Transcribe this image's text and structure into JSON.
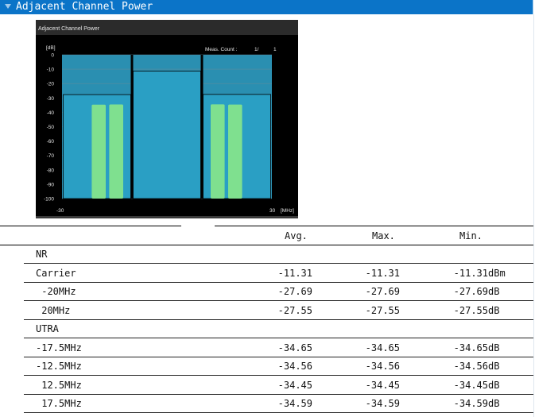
{
  "panel": {
    "title": "Adjacent Channel Power"
  },
  "chart": {
    "title": "Adjacent Channel Power",
    "y_unit": "[dB]",
    "x_unit": "[MHz]",
    "meas_count_label": "Meas. Count :",
    "meas_count_value": "1/",
    "meas_count_total": "1",
    "x_min_label": "-30",
    "x_max_label": "30",
    "y_ticks": [
      "0",
      "-10",
      "-20",
      "-30",
      "-40",
      "-50",
      "-60",
      "-70",
      "-80",
      "-90",
      "-100"
    ],
    "colors": {
      "background": "#000000",
      "plot": "#2a8fb1",
      "utra_bar": "#7fe08f",
      "grid": "#5a8c9e"
    }
  },
  "chart_data": {
    "type": "bar",
    "title": "Adjacent Channel Power",
    "ylabel": "[dB]",
    "xlabel": "[MHz]",
    "xlim": [
      -30,
      30
    ],
    "ylim": [
      -100,
      0
    ],
    "grid": true,
    "series": [
      {
        "name": "NR",
        "bars": [
          {
            "from": -30,
            "to": -10,
            "value": -27.69
          },
          {
            "from": -10,
            "to": 10,
            "value": -11.31
          },
          {
            "from": 10,
            "to": 30,
            "value": -27.55
          }
        ]
      },
      {
        "name": "UTRA",
        "bars": [
          {
            "from": -21.5,
            "to": -17.5,
            "value": -34.65
          },
          {
            "from": -16.5,
            "to": -12.5,
            "value": -34.56
          },
          {
            "from": 12.5,
            "to": 16.5,
            "value": -34.45
          },
          {
            "from": 17.5,
            "to": 21.5,
            "value": -34.59
          }
        ]
      }
    ]
  },
  "table": {
    "headers": {
      "avg": "Avg.",
      "max": "Max.",
      "min": "Min."
    },
    "rows": [
      {
        "label": "NR",
        "avg": "",
        "max": "",
        "min": "",
        "unit": ""
      },
      {
        "label": "Carrier",
        "avg": "-11.31",
        "max": "-11.31",
        "min": "-11.31",
        "unit": "dBm"
      },
      {
        "label": " -20MHz",
        "avg": "-27.69",
        "max": "-27.69",
        "min": "-27.69",
        "unit": "dB"
      },
      {
        "label": " 20MHz",
        "avg": "-27.55",
        "max": "-27.55",
        "min": "-27.55",
        "unit": "dB"
      },
      {
        "label": "UTRA",
        "avg": "",
        "max": "",
        "min": "",
        "unit": ""
      },
      {
        "label": "-17.5MHz",
        "avg": "-34.65",
        "max": "-34.65",
        "min": "-34.65",
        "unit": "dB"
      },
      {
        "label": "-12.5MHz",
        "avg": "-34.56",
        "max": "-34.56",
        "min": "-34.56",
        "unit": "dB"
      },
      {
        "label": " 12.5MHz",
        "avg": "-34.45",
        "max": "-34.45",
        "min": "-34.45",
        "unit": "dB"
      },
      {
        "label": " 17.5MHz",
        "avg": "-34.59",
        "max": "-34.59",
        "min": "-34.59",
        "unit": "dB"
      }
    ]
  }
}
